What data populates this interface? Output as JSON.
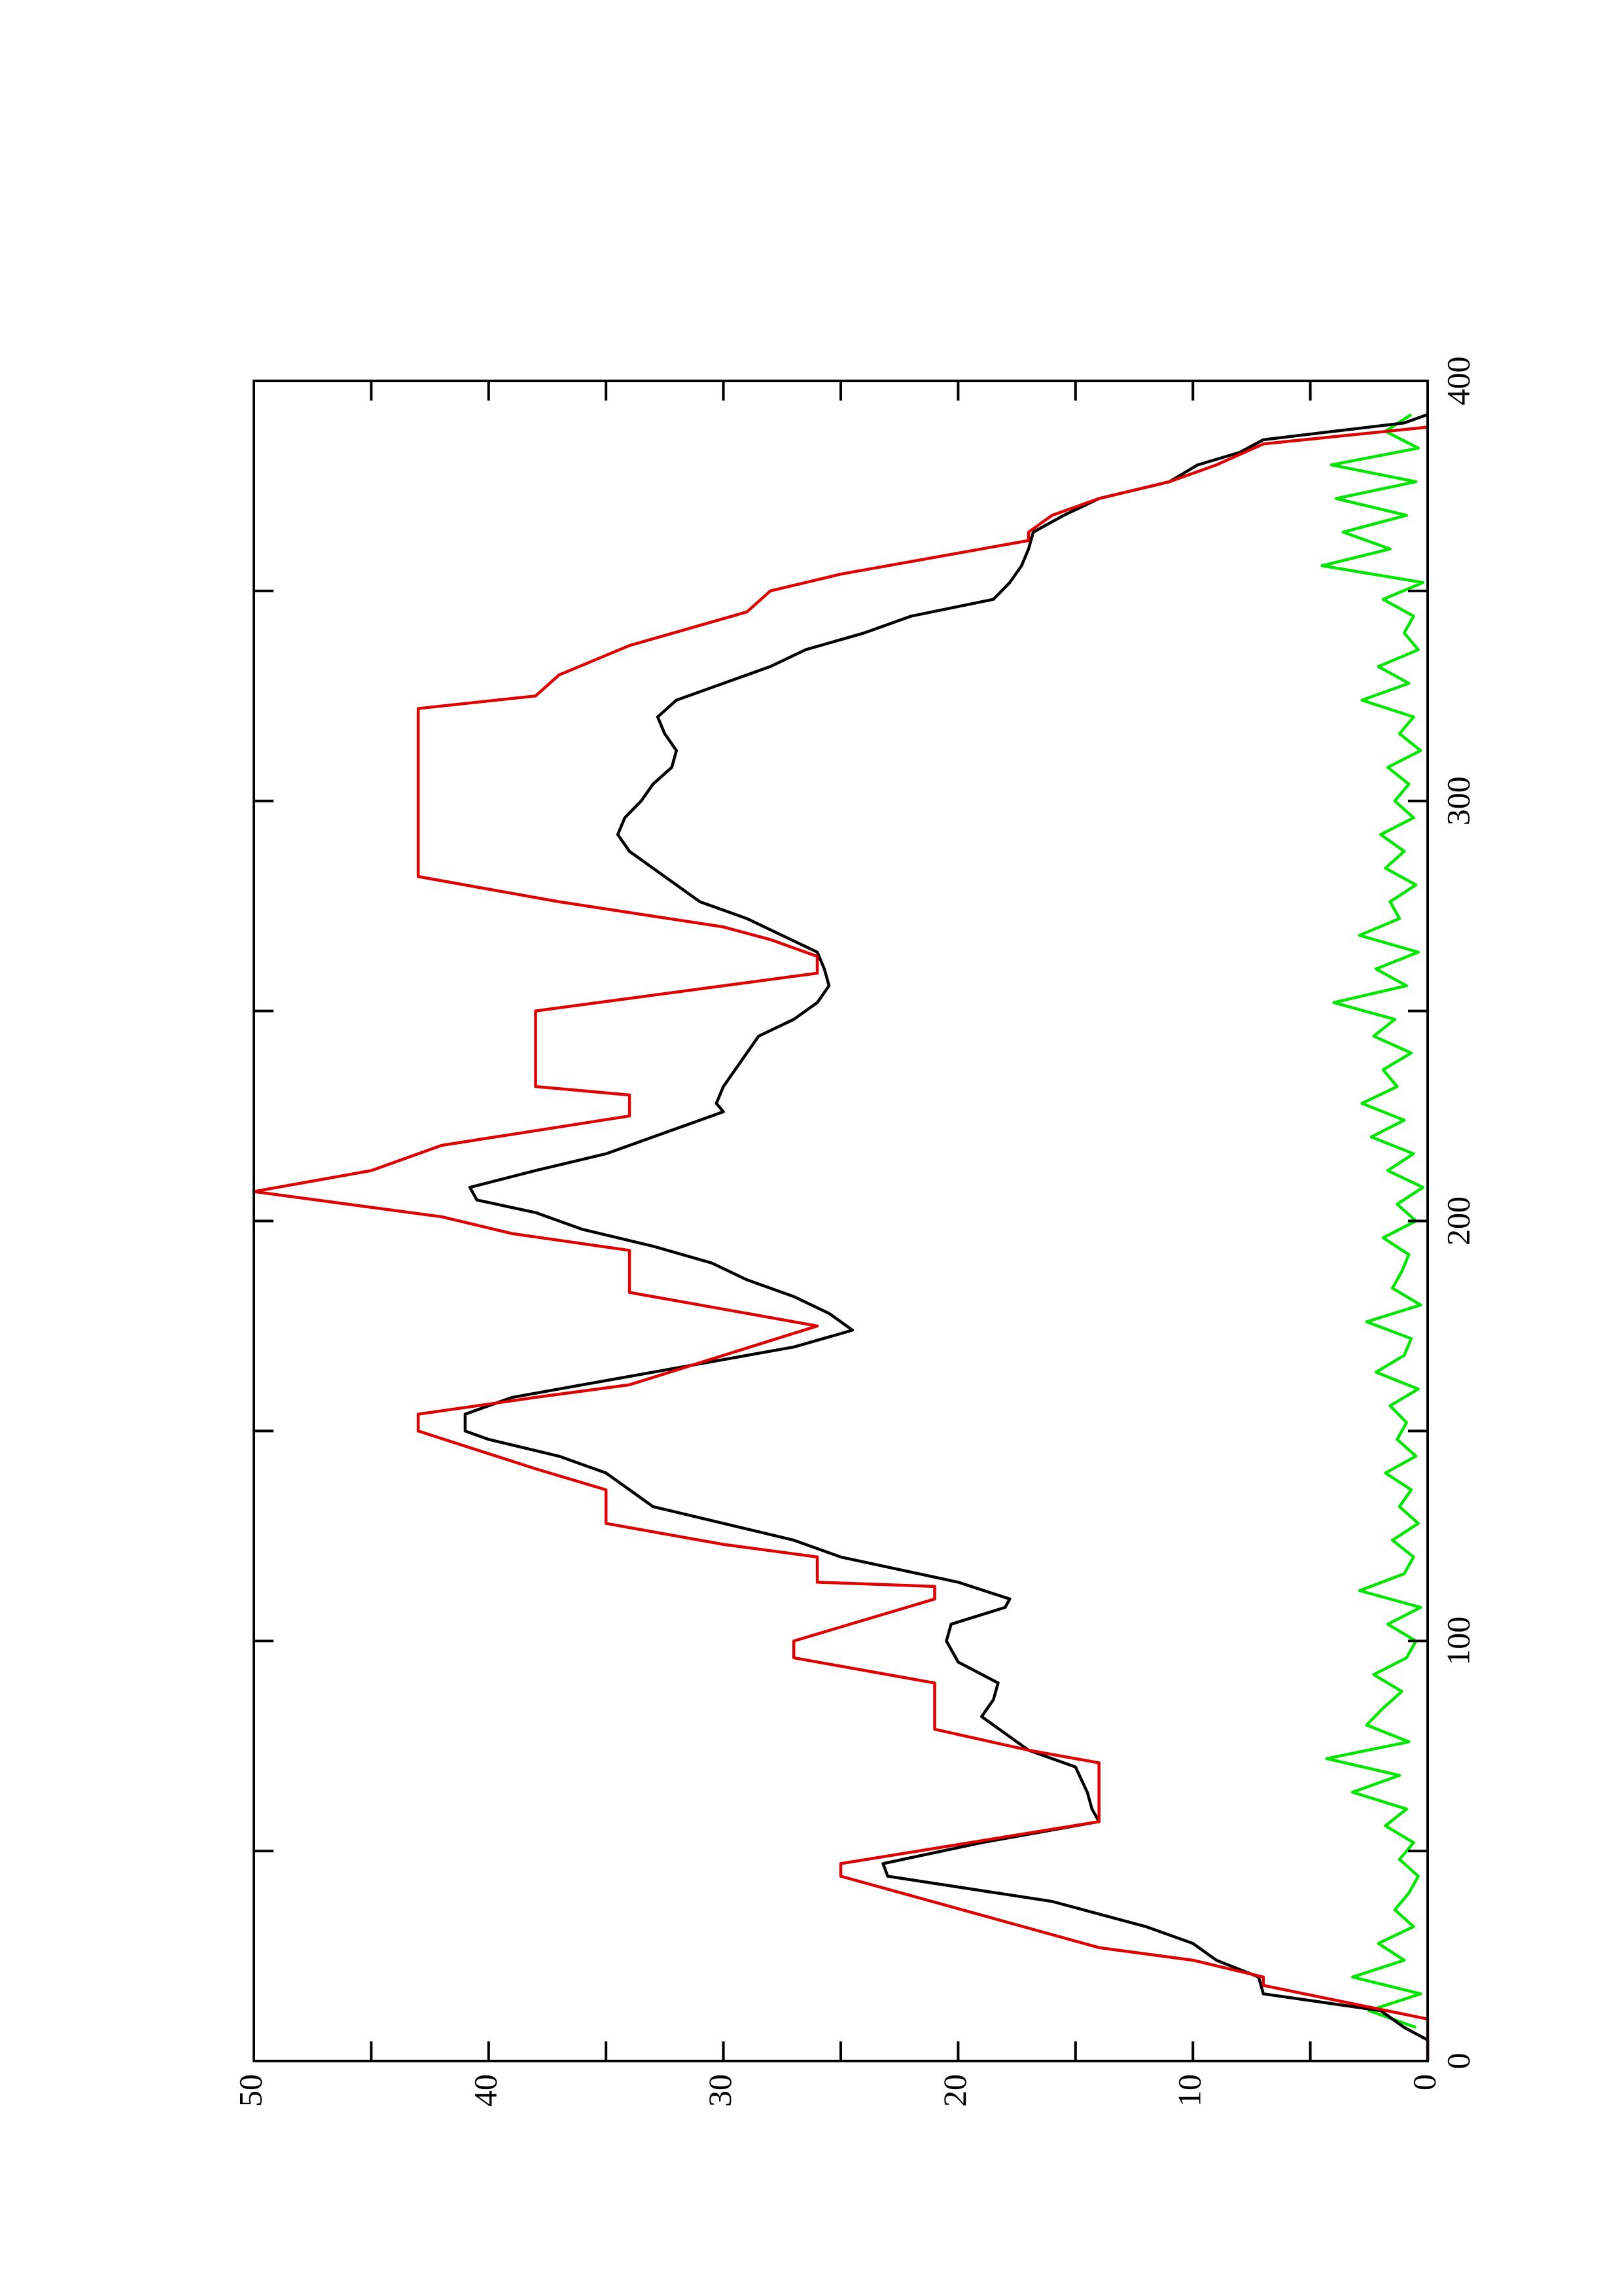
{
  "chart_data": {
    "type": "line",
    "rotation": -90,
    "xlim": [
      0,
      400
    ],
    "xticks": [
      0,
      100,
      200,
      300,
      400
    ],
    "xminorticks": [
      50,
      150,
      250,
      350
    ],
    "ylim": [
      0,
      50
    ],
    "yticks": [
      0,
      10,
      20,
      30,
      40,
      50
    ],
    "yminorticks": [
      5,
      15,
      25,
      35,
      45
    ],
    "series": [
      {
        "color": "#00e600",
        "x": [
          8,
          12,
          16,
          20,
          24,
          28,
          32,
          36,
          40,
          44,
          48,
          52,
          56,
          60,
          64,
          68,
          72,
          76,
          80,
          84,
          88,
          92,
          96,
          100,
          104,
          108,
          112,
          116,
          120,
          124,
          128,
          132,
          136,
          140,
          144,
          148,
          152,
          156,
          160,
          164,
          168,
          172,
          176,
          180,
          184,
          188,
          192,
          196,
          200,
          204,
          208,
          212,
          216,
          220,
          224,
          228,
          232,
          236,
          240,
          244,
          248,
          252,
          256,
          260,
          264,
          268,
          272,
          276,
          280,
          284,
          288,
          292,
          296,
          300,
          304,
          308,
          312,
          316,
          320,
          324,
          328,
          332,
          336,
          340,
          344,
          348,
          352,
          356,
          360,
          364,
          368,
          372,
          376,
          380,
          384,
          388,
          392
        ],
        "values": [
          0.5,
          2.5,
          0.3,
          3.2,
          1.0,
          2.1,
          0.6,
          1.4,
          0.8,
          0.4,
          1.2,
          0.6,
          1.8,
          0.9,
          3.2,
          1.2,
          4.3,
          0.8,
          2.6,
          1.9,
          1.1,
          2.3,
          0.9,
          0.5,
          1.7,
          0.3,
          2.9,
          1.0,
          0.6,
          1.5,
          0.4,
          1.2,
          0.7,
          1.8,
          0.5,
          1.3,
          0.9,
          1.6,
          0.4,
          2.2,
          1.0,
          0.7,
          2.6,
          0.3,
          1.5,
          1.1,
          0.8,
          1.9,
          0.5,
          1.3,
          0.2,
          1.7,
          0.6,
          2.4,
          1.0,
          2.8,
          1.3,
          1.9,
          0.7,
          2.3,
          1.4,
          4.0,
          0.9,
          2.2,
          0.4,
          2.9,
          1.2,
          1.6,
          0.5,
          1.8,
          1.0,
          2.0,
          0.6,
          1.4,
          0.8,
          1.7,
          0.3,
          1.2,
          0.6,
          2.8,
          0.8,
          2.1,
          0.4,
          1.0,
          0.6,
          1.9,
          0.2,
          4.5,
          1.6,
          3.6,
          0.9,
          3.9,
          0.5,
          4.1,
          0.4,
          1.8,
          0.7
        ]
      },
      {
        "color": "#000000",
        "x": [
          0,
          5,
          8,
          12,
          16,
          20,
          24,
          28,
          32,
          38,
          44,
          47,
          52,
          57,
          60,
          64,
          70,
          74,
          78,
          82,
          86,
          90,
          95,
          100,
          104,
          108,
          110,
          114,
          120,
          124,
          128,
          132,
          136,
          140,
          144,
          148,
          150,
          154,
          158,
          162,
          166,
          170,
          174,
          178,
          182,
          186,
          190,
          194,
          198,
          202,
          205,
          208,
          212,
          216,
          220,
          224,
          226,
          228,
          232,
          236,
          240,
          244,
          248,
          252,
          256,
          260,
          264,
          268,
          272,
          276,
          280,
          284,
          288,
          292,
          296,
          300,
          304,
          308,
          312,
          316,
          320,
          324,
          328,
          332,
          336,
          340,
          344,
          348,
          352,
          356,
          360,
          364,
          368,
          372,
          376,
          380,
          383,
          386,
          388,
          390,
          392
        ],
        "values": [
          0,
          0,
          1,
          2,
          7,
          7.2,
          9,
          10,
          12,
          16,
          23,
          23.2,
          19,
          14,
          14.3,
          14.5,
          15,
          17,
          18,
          19,
          18.5,
          18.3,
          20,
          20.5,
          20.3,
          18,
          17.8,
          20,
          25,
          27,
          30,
          33,
          34,
          35,
          37,
          40,
          41,
          41,
          39,
          35,
          31,
          27,
          24.5,
          25.5,
          27,
          29,
          30.5,
          33,
          36,
          38,
          40.5,
          40.8,
          38,
          35,
          33,
          31,
          30,
          30.3,
          30,
          29.5,
          29,
          28.5,
          27,
          26,
          25.5,
          25.7,
          26,
          27.5,
          29,
          31,
          32,
          33,
          34,
          34.5,
          34.2,
          33.5,
          33,
          32.2,
          32,
          32.5,
          32.8,
          32,
          30,
          28,
          26.5,
          24,
          22,
          18.5,
          17.8,
          17.3,
          17,
          16.8,
          15.5,
          14,
          11,
          9.8,
          8,
          7,
          4,
          1,
          0
        ]
      },
      {
        "color": "#e00000",
        "x": [
          0,
          10,
          18,
          20,
          24,
          27,
          44,
          47,
          57,
          71,
          74,
          79,
          90,
          96,
          100,
          110,
          113,
          114,
          120,
          123,
          128,
          136,
          141,
          150,
          154,
          158,
          161,
          175,
          183,
          193,
          197,
          201,
          207,
          212,
          218,
          225,
          230,
          232,
          250,
          256,
          259,
          263,
          267,
          270,
          276,
          282,
          322,
          325,
          330,
          337,
          345,
          350,
          354,
          362,
          364,
          368,
          372,
          376,
          380,
          385,
          389
        ],
        "values": [
          0,
          0,
          7,
          7,
          10,
          14,
          25,
          25,
          14,
          14,
          17,
          21,
          21,
          27,
          27,
          21,
          21,
          26,
          26,
          30,
          35,
          35,
          38,
          43,
          43,
          38,
          34,
          26,
          34,
          34,
          39,
          42,
          50,
          45,
          42,
          34,
          34,
          38,
          38,
          30,
          26,
          26,
          28,
          30,
          37,
          43,
          43,
          38,
          37,
          34,
          29,
          28,
          25,
          17,
          17,
          16,
          14,
          11,
          9,
          7,
          0
        ]
      }
    ]
  }
}
